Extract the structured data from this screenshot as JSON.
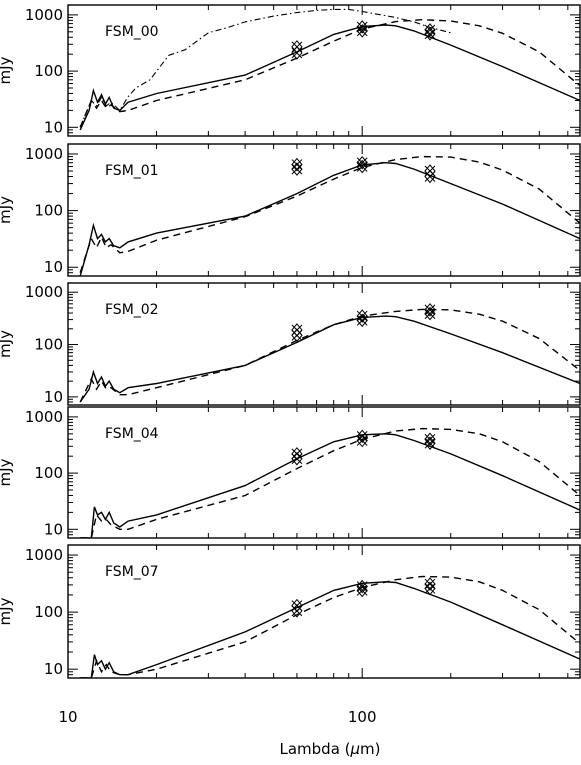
{
  "chart_data": {
    "type": "line",
    "x_axis": {
      "label": "Lambda (μm)",
      "label_prefix": "Lambda (",
      "label_mu": "μ",
      "label_suffix": "m)",
      "scale": "log",
      "range": [
        10,
        550
      ],
      "tick_labels": [
        "10",
        "100"
      ]
    },
    "y_axis": {
      "label": "mJy",
      "scale": "log",
      "range": [
        7,
        1500
      ],
      "tick_labels": [
        "10",
        "100",
        "1000"
      ]
    },
    "panels": [
      {
        "label": "FSM_00",
        "series": [
          {
            "style": "solid",
            "x": [
              11,
              11.8,
              12.2,
              12.6,
              13,
              13.4,
              13.8,
              14.3,
              15,
              16,
              20,
              40,
              60,
              80,
              100,
              120,
              130,
              150,
              200,
              300,
              550
            ],
            "y": [
              9,
              20,
              45,
              28,
              38,
              26,
              34,
              22,
              20,
              28,
              40,
              85,
              220,
              450,
              620,
              660,
              640,
              520,
              290,
              120,
              30
            ]
          },
          {
            "style": "dashed",
            "x": [
              11,
              12,
              12.5,
              13,
              13.5,
              14,
              15,
              16,
              20,
              40,
              60,
              80,
              100,
              130,
              160,
              200,
              250,
              300,
              400,
              550
            ],
            "y": [
              10,
              30,
              22,
              30,
              22,
              25,
              19,
              20,
              30,
              70,
              170,
              340,
              560,
              760,
              820,
              780,
              640,
              470,
              220,
              55
            ]
          },
          {
            "style": "dashdot",
            "x": [
              11,
              12,
              12.5,
              13,
              13.5,
              14,
              15,
              16,
              17,
              19,
              20,
              22,
              25,
              30,
              35,
              40,
              50,
              60,
              70,
              80,
              90,
              100,
              110,
              130,
              150,
              170,
              200
            ],
            "y": [
              10,
              30,
              24,
              34,
              24,
              28,
              20,
              35,
              50,
              70,
              100,
              190,
              240,
              480,
              600,
              750,
              950,
              1100,
              1200,
              1250,
              1250,
              1150,
              1050,
              900,
              750,
              600,
              480
            ]
          }
        ],
        "points": [
          {
            "x": 60,
            "y": 270
          },
          {
            "x": 60,
            "y": 210
          },
          {
            "x": 100,
            "y": 610
          },
          {
            "x": 100,
            "y": 520
          },
          {
            "x": 170,
            "y": 540
          },
          {
            "x": 170,
            "y": 460
          }
        ]
      },
      {
        "label": "FSM_01",
        "series": [
          {
            "style": "solid",
            "x": [
              11,
              11.8,
              12.2,
              12.6,
              13,
              13.4,
              13.8,
              14.3,
              15,
              16,
              20,
              40,
              60,
              80,
              100,
              120,
              130,
              150,
              200,
              300,
              550
            ],
            "y": [
              7,
              25,
              55,
              32,
              38,
              28,
              32,
              24,
              22,
              28,
              40,
              80,
              200,
              420,
              640,
              700,
              680,
              540,
              300,
              130,
              32
            ]
          },
          {
            "style": "dashed",
            "x": [
              11,
              12,
              12.5,
              13,
              13.5,
              14,
              15,
              16,
              20,
              40,
              60,
              80,
              100,
              130,
              160,
              200,
              250,
              300,
              400,
              550
            ],
            "y": [
              8,
              32,
              22,
              34,
              22,
              25,
              18,
              19,
              30,
              78,
              180,
              360,
              580,
              800,
              900,
              880,
              720,
              520,
              240,
              60
            ]
          }
        ],
        "points": [
          {
            "x": 60,
            "y": 650
          },
          {
            "x": 60,
            "y": 540
          },
          {
            "x": 100,
            "y": 700
          },
          {
            "x": 100,
            "y": 600
          },
          {
            "x": 170,
            "y": 500
          },
          {
            "x": 170,
            "y": 400
          }
        ]
      },
      {
        "label": "FSM_02",
        "series": [
          {
            "style": "solid",
            "x": [
              11,
              11.8,
              12.2,
              12.6,
              13,
              13.4,
              13.8,
              14.3,
              15,
              16,
              20,
              40,
              60,
              80,
              100,
              120,
              130,
              150,
              200,
              300,
              550
            ],
            "y": [
              8,
              14,
              30,
              18,
              24,
              16,
              20,
              14,
              12,
              15,
              18,
              40,
              110,
              240,
              330,
              350,
              340,
              280,
              160,
              70,
              18
            ]
          },
          {
            "style": "dashed",
            "x": [
              11,
              12,
              12.5,
              13,
              13.5,
              14,
              15,
              16,
              20,
              40,
              60,
              80,
              100,
              130,
              160,
              200,
              250,
              300,
              400,
              550
            ],
            "y": [
              8,
              22,
              14,
              20,
              14,
              15,
              11,
              11,
              15,
              40,
              120,
              240,
              350,
              430,
              470,
              460,
              380,
              280,
              130,
              32
            ]
          }
        ],
        "points": [
          {
            "x": 60,
            "y": 190
          },
          {
            "x": 60,
            "y": 150
          },
          {
            "x": 100,
            "y": 350
          },
          {
            "x": 100,
            "y": 290
          },
          {
            "x": 170,
            "y": 460
          },
          {
            "x": 170,
            "y": 390
          }
        ]
      },
      {
        "label": "FSM_04",
        "series": [
          {
            "style": "solid",
            "x": [
              11,
              11.5,
              12,
              12.3,
              12.6,
              13,
              13.4,
              13.8,
              14.3,
              15,
              16,
              20,
              40,
              60,
              80,
              100,
              120,
              130,
              150,
              200,
              300,
              550
            ],
            "y": [
              7,
              7,
              7,
              25,
              18,
              20,
              15,
              20,
              13,
              11,
              14,
              18,
              60,
              180,
              360,
              480,
              500,
              480,
              380,
              220,
              90,
              22
            ]
          },
          {
            "style": "dashed",
            "x": [
              11,
              11.5,
              12,
              12.5,
              13,
              13.5,
              14,
              15,
              16,
              20,
              40,
              60,
              80,
              100,
              130,
              160,
              200,
              250,
              300,
              400,
              550
            ],
            "y": [
              7,
              7,
              7,
              18,
              14,
              15,
              12,
              10,
              10,
              15,
              40,
              120,
              250,
              400,
              560,
              620,
              600,
              500,
              360,
              160,
              40
            ]
          }
        ],
        "points": [
          {
            "x": 60,
            "y": 220
          },
          {
            "x": 60,
            "y": 180
          },
          {
            "x": 100,
            "y": 450
          },
          {
            "x": 100,
            "y": 380
          },
          {
            "x": 170,
            "y": 400
          },
          {
            "x": 170,
            "y": 340
          }
        ]
      },
      {
        "label": "FSM_07",
        "series": [
          {
            "style": "solid",
            "x": [
              11,
              11.5,
              12,
              12.3,
              12.6,
              13,
              13.4,
              13.8,
              14.3,
              15,
              16,
              20,
              40,
              60,
              80,
              100,
              120,
              130,
              150,
              200,
              300,
              550
            ],
            "y": [
              7,
              7,
              7,
              18,
              12,
              14,
              10,
              13,
              9,
              8,
              8,
              12,
              45,
              120,
              240,
              320,
              340,
              330,
              260,
              150,
              60,
              15
            ]
          },
          {
            "style": "dashed",
            "x": [
              11,
              11.5,
              12,
              12.5,
              13,
              13.5,
              14,
              15,
              16,
              20,
              40,
              60,
              80,
              100,
              130,
              160,
              200,
              250,
              300,
              400,
              550
            ],
            "y": [
              7,
              7,
              7,
              14,
              9,
              12,
              9,
              8,
              8,
              10,
              30,
              90,
              180,
              270,
              370,
              420,
              410,
              340,
              240,
              110,
              28
            ]
          }
        ],
        "points": [
          {
            "x": 60,
            "y": 130
          },
          {
            "x": 60,
            "y": 105
          },
          {
            "x": 100,
            "y": 280
          },
          {
            "x": 100,
            "y": 240
          },
          {
            "x": 170,
            "y": 310
          },
          {
            "x": 170,
            "y": 260
          }
        ]
      }
    ]
  }
}
